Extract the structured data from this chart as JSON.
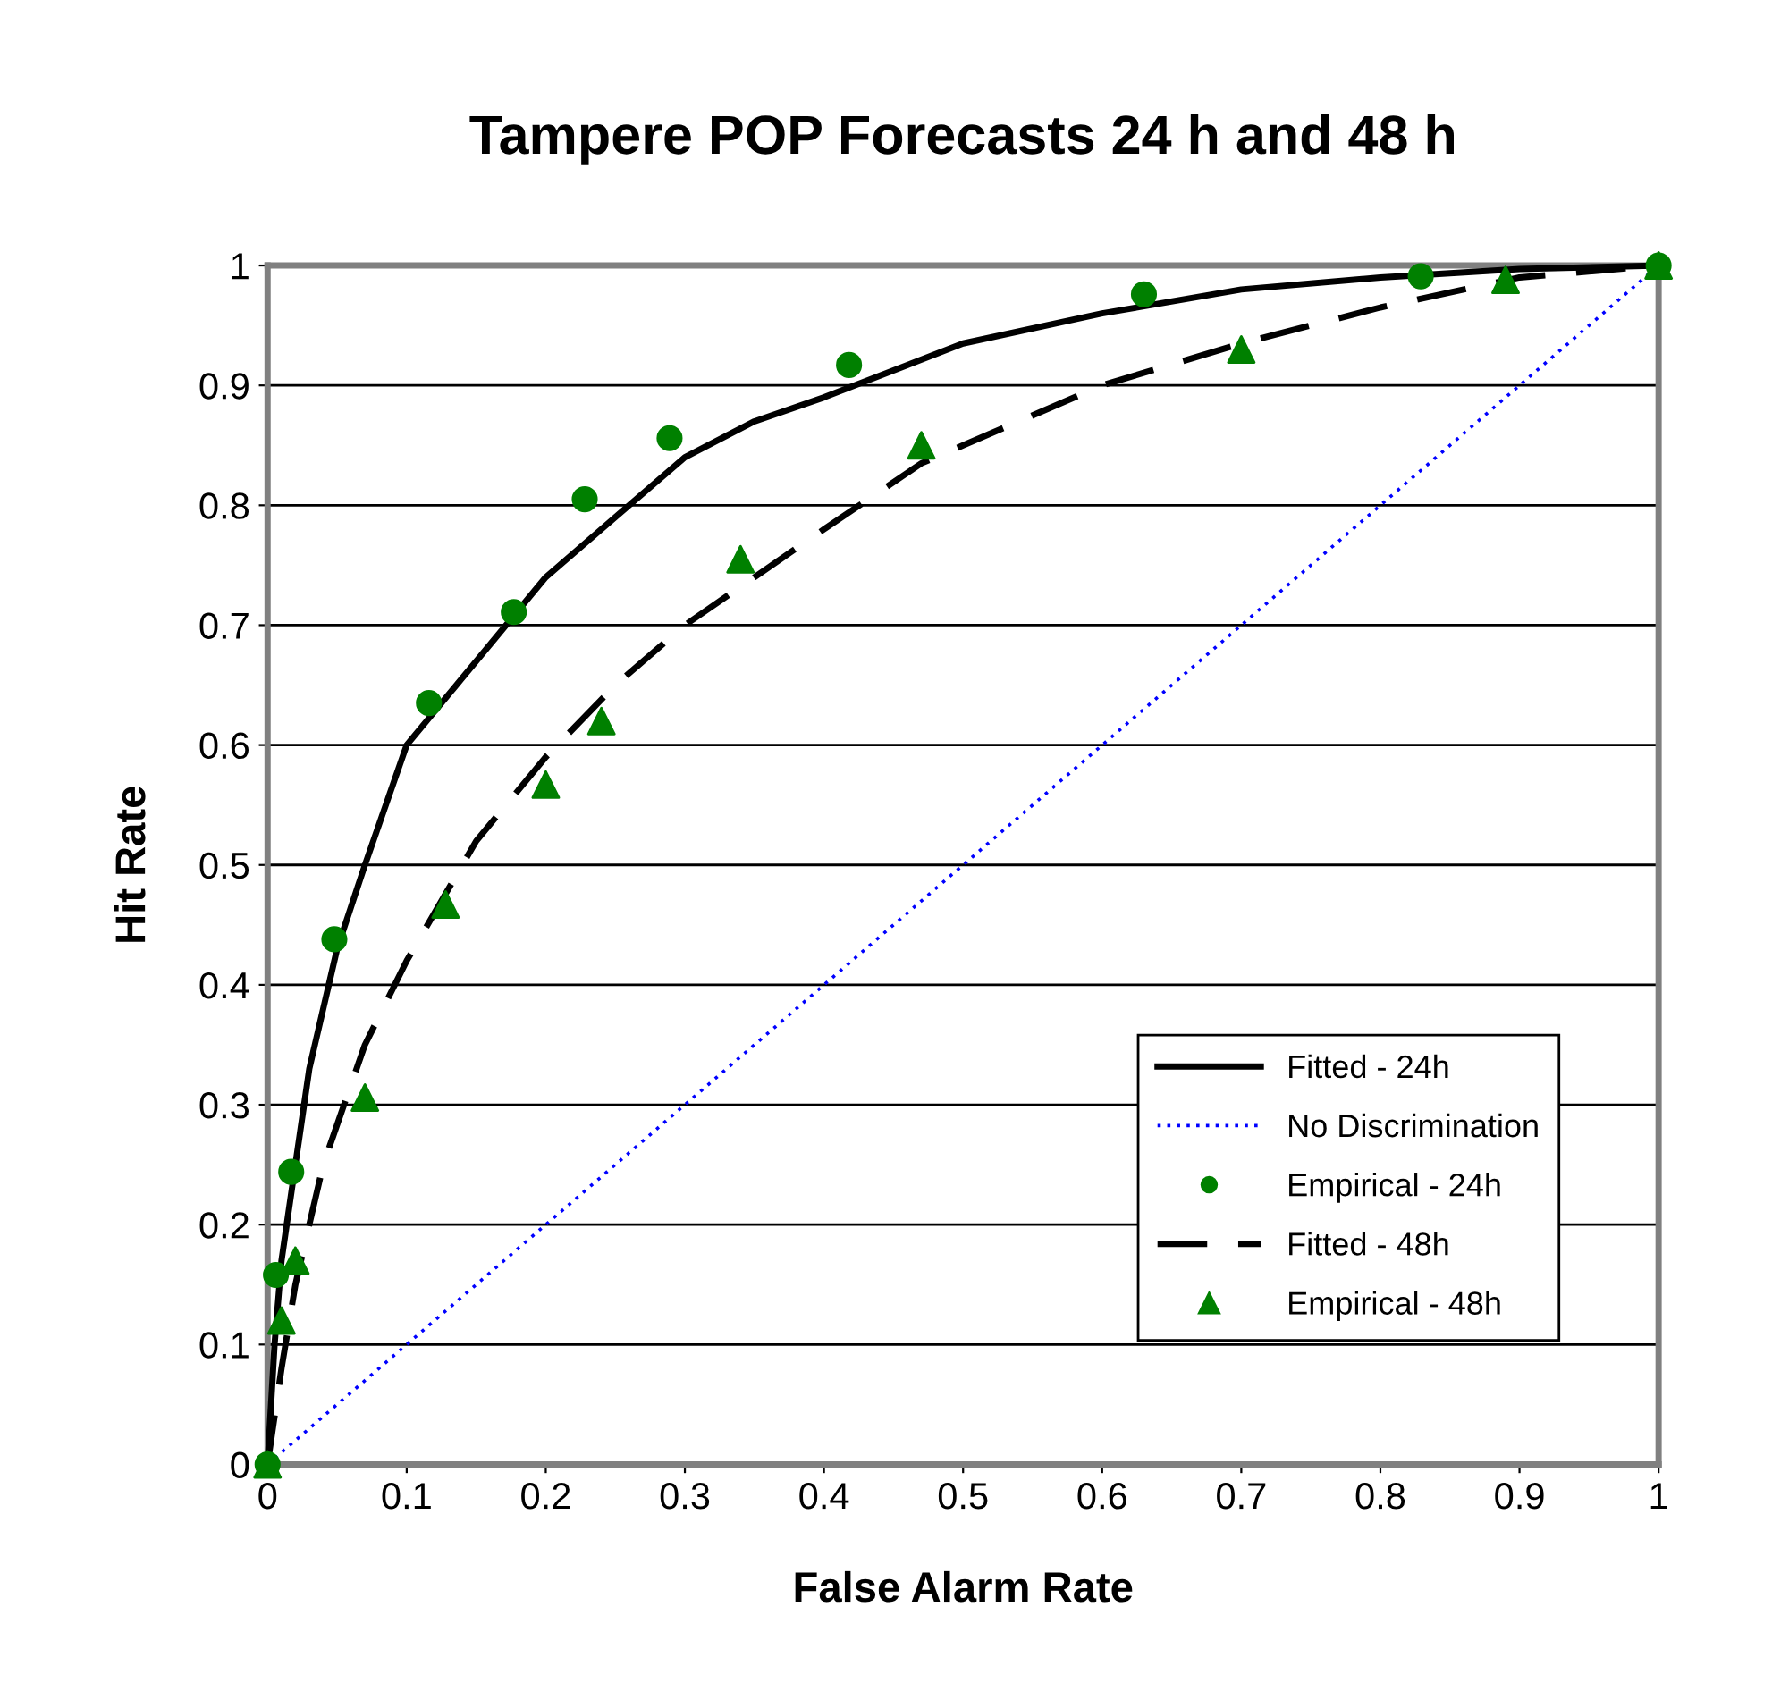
{
  "chart_data": {
    "type": "line",
    "title": "Tampere POP Forecasts 24 h and 48 h",
    "xlabel": "False Alarm Rate",
    "ylabel": "Hit Rate",
    "xlim": [
      0,
      1
    ],
    "ylim": [
      0,
      1
    ],
    "xticks": [
      0,
      0.1,
      0.2,
      0.3,
      0.4,
      0.5,
      0.6,
      0.7,
      0.8,
      0.9,
      1
    ],
    "yticks": [
      0,
      0.1,
      0.2,
      0.3,
      0.4,
      0.5,
      0.6,
      0.7,
      0.8,
      0.9,
      1
    ],
    "grid": "y",
    "legend": "bottom right",
    "series": [
      {
        "name": "Fitted - 24h",
        "line_style": "solid",
        "marker": "none",
        "color": "#000000",
        "x": [
          0,
          0.005,
          0.01,
          0.02,
          0.03,
          0.05,
          0.07,
          0.1,
          0.15,
          0.2,
          0.25,
          0.3,
          0.35,
          0.4,
          0.5,
          0.6,
          0.7,
          0.8,
          0.9,
          1
        ],
        "values": [
          0,
          0.1,
          0.17,
          0.25,
          0.33,
          0.43,
          0.5,
          0.6,
          0.67,
          0.74,
          0.79,
          0.84,
          0.87,
          0.89,
          0.935,
          0.96,
          0.98,
          0.99,
          0.997,
          1
        ]
      },
      {
        "name": "No Discrimination",
        "line_style": "dotted",
        "marker": "none",
        "color": "#0000ff",
        "x": [
          0,
          1
        ],
        "values": [
          0,
          1
        ]
      },
      {
        "name": "Empirical - 24h",
        "type": "scatter",
        "marker": "circle",
        "color": "#008000",
        "x": [
          0,
          0.006,
          0.017,
          0.048,
          0.116,
          0.177,
          0.228,
          0.289,
          0.418,
          0.63,
          0.829,
          1
        ],
        "values": [
          0,
          0.158,
          0.244,
          0.438,
          0.635,
          0.711,
          0.805,
          0.856,
          0.917,
          0.976,
          0.991,
          1
        ]
      },
      {
        "name": "Fitted - 48h",
        "line_style": "dashed",
        "marker": "none",
        "color": "#000000",
        "x": [
          0,
          0.01,
          0.02,
          0.04,
          0.07,
          0.1,
          0.15,
          0.2,
          0.25,
          0.3,
          0.35,
          0.4,
          0.47,
          0.5,
          0.6,
          0.7,
          0.8,
          0.9,
          1
        ],
        "values": [
          0,
          0.08,
          0.15,
          0.25,
          0.35,
          0.42,
          0.52,
          0.59,
          0.65,
          0.7,
          0.74,
          0.78,
          0.835,
          0.85,
          0.9,
          0.935,
          0.965,
          0.99,
          1
        ]
      },
      {
        "name": "Empirical - 48h",
        "type": "scatter",
        "marker": "triangle",
        "color": "#008000",
        "x": [
          0,
          0.01,
          0.02,
          0.07,
          0.128,
          0.2,
          0.24,
          0.34,
          0.47,
          0.7,
          0.89,
          1
        ],
        "values": [
          0,
          0.12,
          0.17,
          0.306,
          0.467,
          0.567,
          0.62,
          0.755,
          0.85,
          0.93,
          0.988,
          1
        ]
      }
    ]
  }
}
